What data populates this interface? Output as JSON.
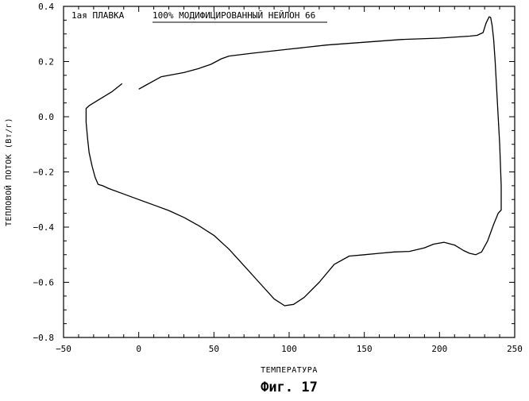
{
  "chart_data": {
    "type": "line",
    "title_left": "1ая ПЛАВКА",
    "title_right": "100% МОДИФИЦИРОВАННЫЙ НЕЙЛОН 66",
    "xlabel": "ТЕМПЕРАТУРА",
    "ylabel": "ТЕПЛОВОЙ ПОТОК (Вт/г)",
    "caption": "Фиг. 17",
    "xlim": [
      -50,
      250
    ],
    "ylim": [
      -0.8,
      0.4
    ],
    "xticks": [
      -50,
      0,
      50,
      100,
      150,
      200,
      250
    ],
    "xtick_labels": [
      "−50",
      "0",
      "50",
      "100",
      "150",
      "200",
      "250"
    ],
    "yticks": [
      -0.8,
      -0.6,
      -0.4,
      -0.2,
      0.0,
      0.2,
      0.4
    ],
    "ytick_labels": [
      "−0.8",
      "−0.6",
      "−0.4",
      "−0.2",
      "0.0",
      "0.2",
      "0.4"
    ],
    "grid": false,
    "series": [
      {
        "segments": [
          [
            [
              -11,
              0.12
            ],
            [
              -18,
              0.09
            ],
            [
              -27,
              0.06
            ],
            [
              -33,
              0.04
            ],
            [
              -35,
              0.03
            ],
            [
              -35,
              -0.02
            ],
            [
              -34,
              -0.08
            ],
            [
              -33,
              -0.13
            ],
            [
              -31,
              -0.18
            ],
            [
              -29,
              -0.22
            ],
            [
              -27,
              -0.245
            ],
            [
              -24,
              -0.25
            ],
            [
              -20,
              -0.26
            ],
            [
              -10,
              -0.28
            ],
            [
              0,
              -0.3
            ],
            [
              10,
              -0.32
            ],
            [
              20,
              -0.34
            ],
            [
              30,
              -0.365
            ],
            [
              40,
              -0.395
            ],
            [
              50,
              -0.43
            ],
            [
              60,
              -0.48
            ],
            [
              70,
              -0.54
            ],
            [
              80,
              -0.6
            ],
            [
              90,
              -0.66
            ],
            [
              97,
              -0.685
            ],
            [
              103,
              -0.68
            ],
            [
              110,
              -0.655
            ],
            [
              120,
              -0.6
            ],
            [
              130,
              -0.535
            ],
            [
              140,
              -0.505
            ],
            [
              150,
              -0.5
            ],
            [
              160,
              -0.495
            ],
            [
              170,
              -0.49
            ],
            [
              180,
              -0.488
            ],
            [
              190,
              -0.475
            ],
            [
              196,
              -0.462
            ],
            [
              203,
              -0.455
            ],
            [
              210,
              -0.465
            ],
            [
              216,
              -0.485
            ],
            [
              220,
              -0.495
            ],
            [
              224,
              -0.5
            ],
            [
              228,
              -0.49
            ],
            [
              232,
              -0.45
            ],
            [
              236,
              -0.39
            ],
            [
              239,
              -0.35
            ],
            [
              241,
              -0.338
            ],
            [
              241,
              -0.25
            ],
            [
              240,
              -0.1
            ],
            [
              239,
              0.0
            ],
            [
              238,
              0.1
            ],
            [
              237,
              0.2
            ],
            [
              236,
              0.28
            ],
            [
              235,
              0.33
            ],
            [
              234,
              0.36
            ],
            [
              233,
              0.362
            ],
            [
              231,
              0.34
            ],
            [
              229,
              0.305
            ],
            [
              225,
              0.295
            ],
            [
              220,
              0.292
            ],
            [
              200,
              0.285
            ],
            [
              175,
              0.28
            ],
            [
              150,
              0.27
            ],
            [
              125,
              0.26
            ],
            [
              100,
              0.245
            ],
            [
              75,
              0.23
            ],
            [
              60,
              0.22
            ],
            [
              55,
              0.21
            ],
            [
              48,
              0.19
            ],
            [
              40,
              0.175
            ],
            [
              30,
              0.16
            ],
            [
              20,
              0.15
            ],
            [
              15,
              0.145
            ],
            [
              10,
              0.13
            ],
            [
              5,
              0.115
            ],
            [
              0,
              0.1
            ]
          ]
        ]
      }
    ]
  }
}
